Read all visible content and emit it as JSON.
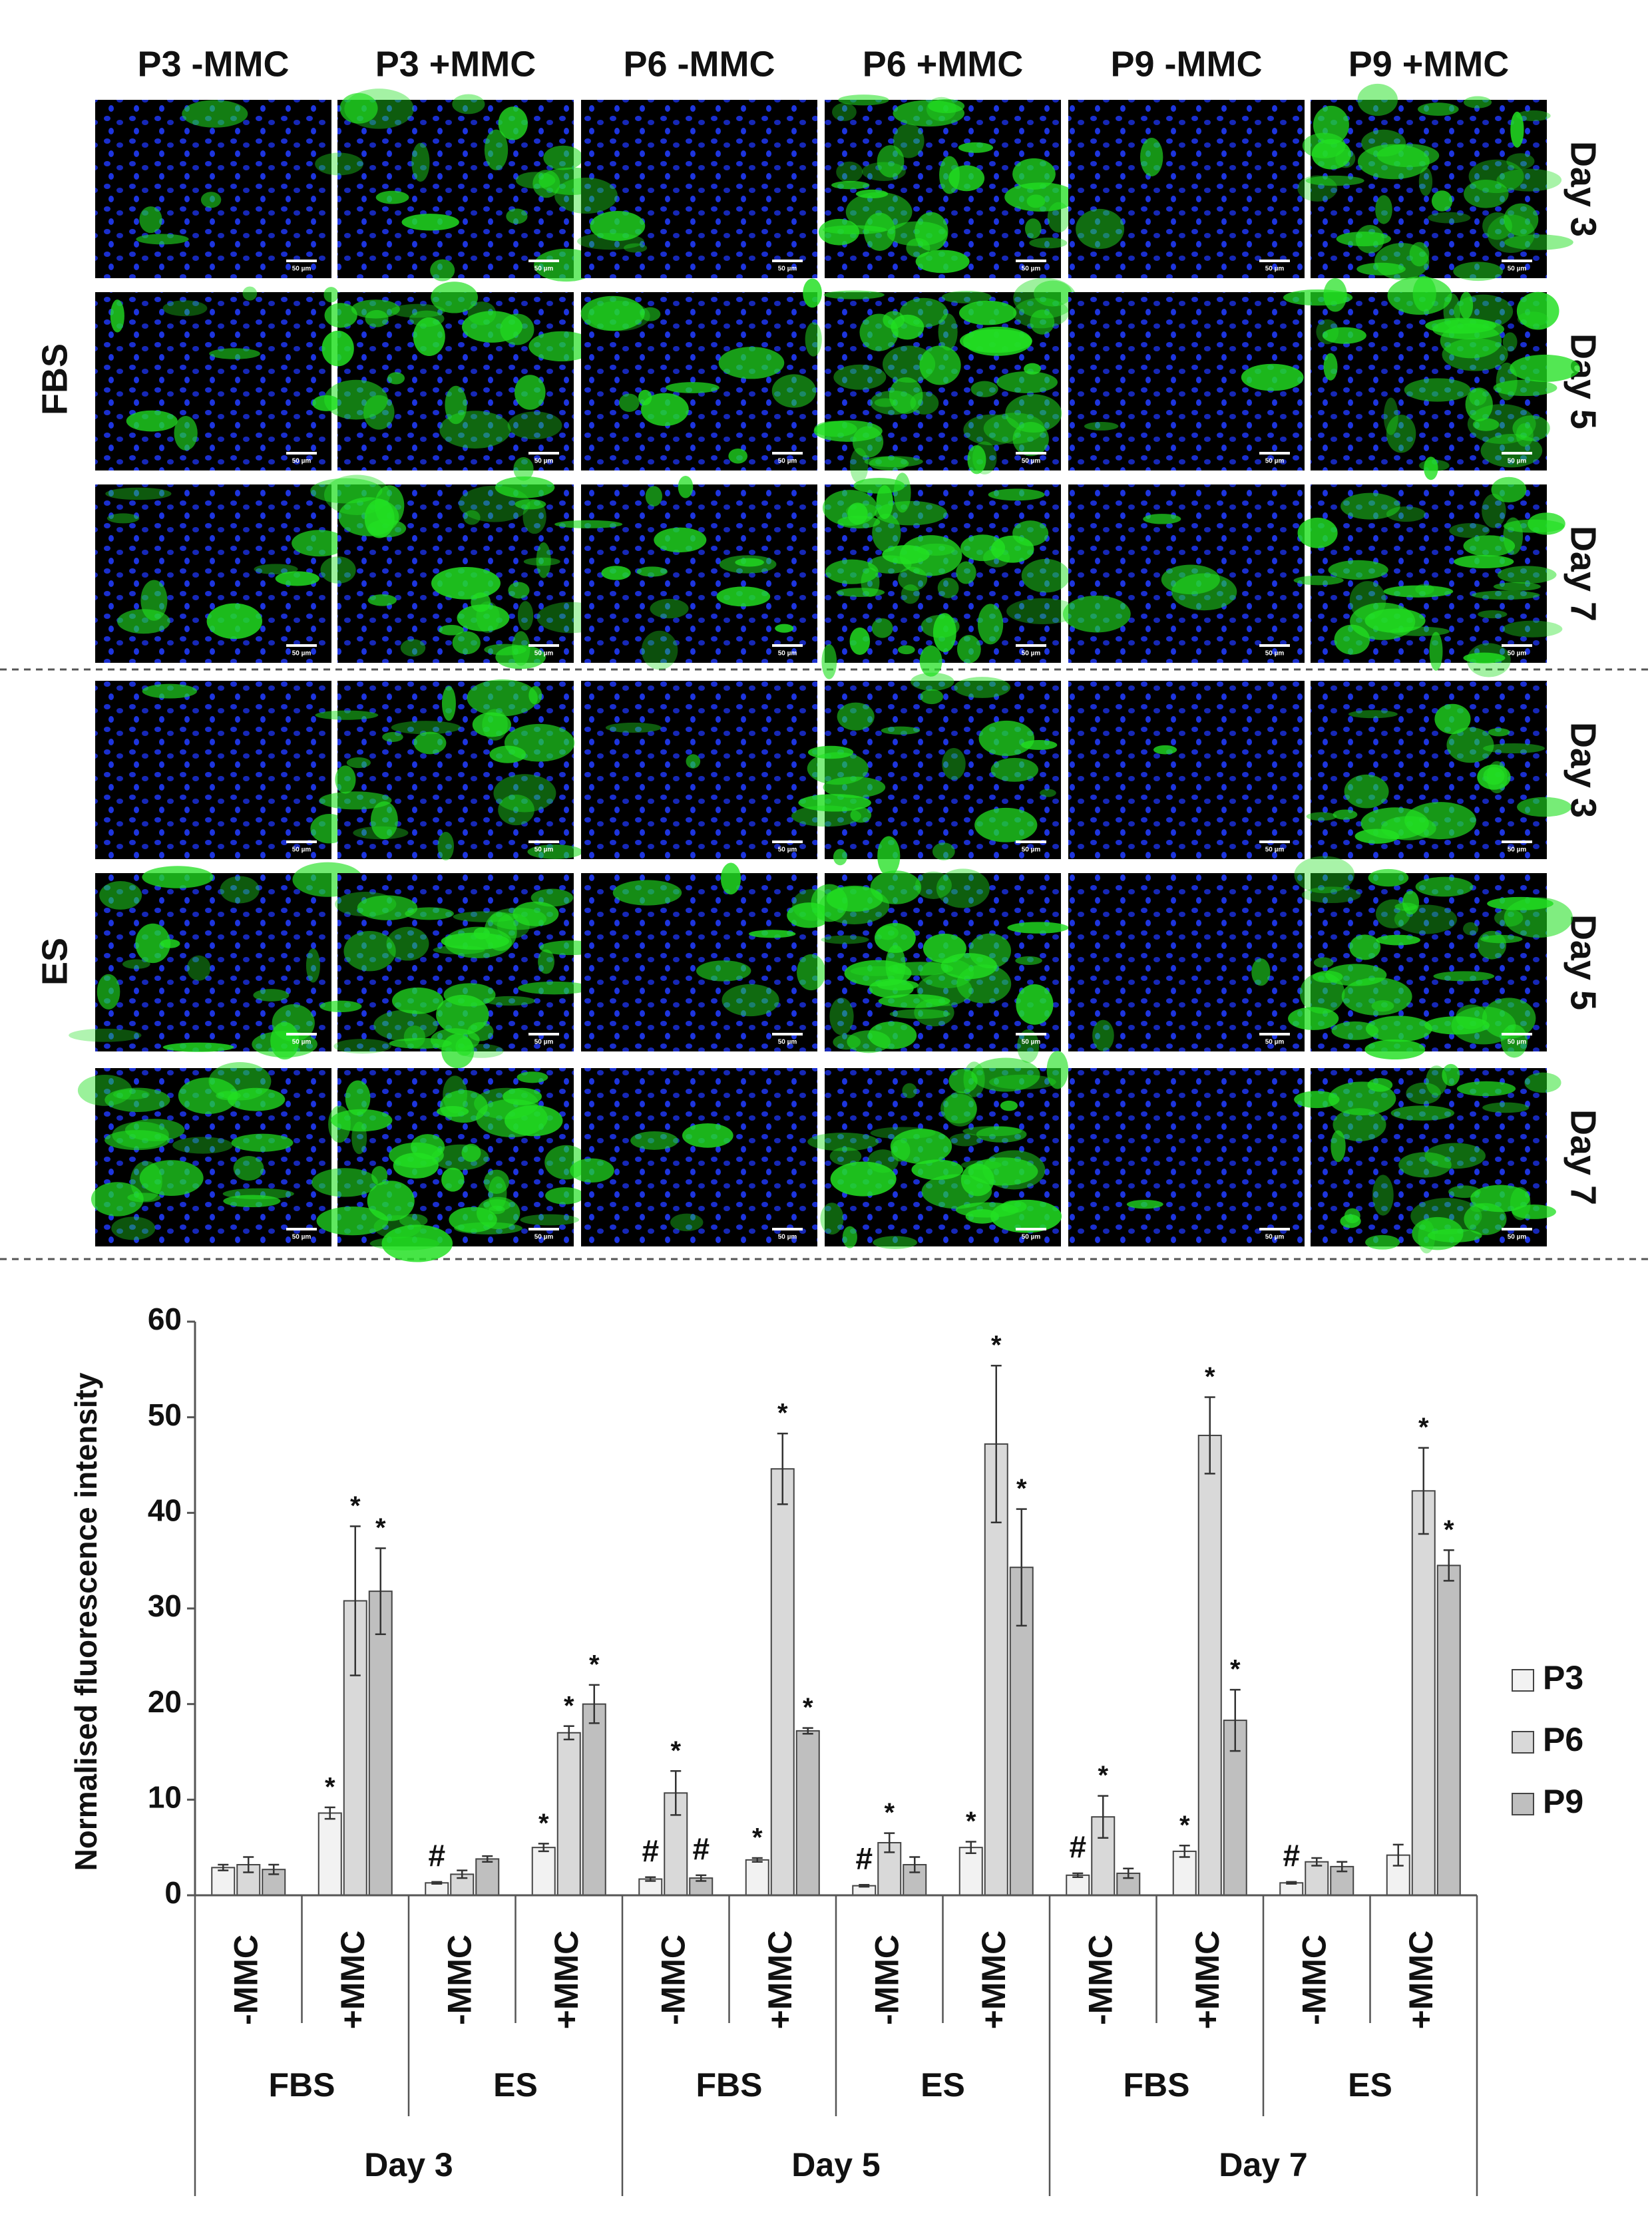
{
  "figure": {
    "column_headers": [
      "P3 -MMC",
      "P3 +MMC",
      "P6 -MMC",
      "P6 +MMC",
      "P9 -MMC",
      "P9 +MMC"
    ],
    "row_groups": [
      {
        "label": "FBS",
        "days": [
          "Day 3",
          "Day 5",
          "Day 7"
        ]
      },
      {
        "label": "ES",
        "days": [
          "Day 3",
          "Day 5",
          "Day 7"
        ]
      }
    ],
    "scale_bar": "50 µm"
  },
  "chart_data": {
    "type": "bar",
    "ylabel": "Normalised fluorescence intensity",
    "ylim": [
      0,
      60
    ],
    "yticks": [
      0,
      10,
      20,
      30,
      40,
      50,
      60
    ],
    "legend": "right",
    "categories": [
      "-MMC",
      "+MMC",
      "-MMC",
      "+MMC",
      "-MMC",
      "+MMC",
      "-MMC",
      "+MMC",
      "-MMC",
      "+MMC",
      "-MMC",
      "+MMC"
    ],
    "groups": [
      "FBS",
      "ES",
      "FBS",
      "ES",
      "FBS",
      "ES"
    ],
    "days": [
      "Day 3",
      "Day 5",
      "Day 7"
    ],
    "series": [
      {
        "name": "P3",
        "color": "#f2f2f2",
        "values": [
          2.9,
          8.6,
          1.3,
          5.0,
          1.7,
          3.7,
          1.0,
          5.0,
          2.1,
          4.6,
          1.3,
          4.2
        ],
        "errors": [
          0.3,
          0.6,
          0.1,
          0.4,
          0.2,
          0.2,
          0.1,
          0.6,
          0.2,
          0.6,
          0.1,
          1.1
        ],
        "annotations": [
          null,
          "*",
          "#",
          "*",
          "#",
          "*",
          "#",
          "*",
          "#",
          "*",
          "#",
          null
        ]
      },
      {
        "name": "P6",
        "color": "#d9d9d9",
        "values": [
          3.2,
          30.8,
          2.2,
          17.0,
          10.7,
          44.6,
          5.5,
          47.2,
          8.2,
          48.1,
          3.5,
          42.3
        ],
        "errors": [
          0.8,
          7.8,
          0.4,
          0.7,
          2.3,
          3.7,
          1.0,
          8.2,
          2.2,
          4.0,
          0.4,
          4.5
        ],
        "annotations": [
          null,
          "*",
          null,
          "*",
          "*",
          "*",
          "*",
          "*",
          "*",
          "*",
          null,
          "*"
        ]
      },
      {
        "name": "P9",
        "color": "#bfbfbf",
        "values": [
          2.7,
          31.8,
          3.8,
          20.0,
          1.8,
          17.2,
          3.2,
          34.3,
          2.3,
          18.3,
          3.0,
          34.5
        ],
        "errors": [
          0.5,
          4.5,
          0.3,
          2.0,
          0.3,
          0.3,
          0.8,
          6.1,
          0.5,
          3.2,
          0.5,
          1.6
        ],
        "annotations": [
          null,
          "*",
          null,
          "*",
          "#",
          "*",
          null,
          "*",
          null,
          "*",
          null,
          "*"
        ]
      }
    ]
  }
}
